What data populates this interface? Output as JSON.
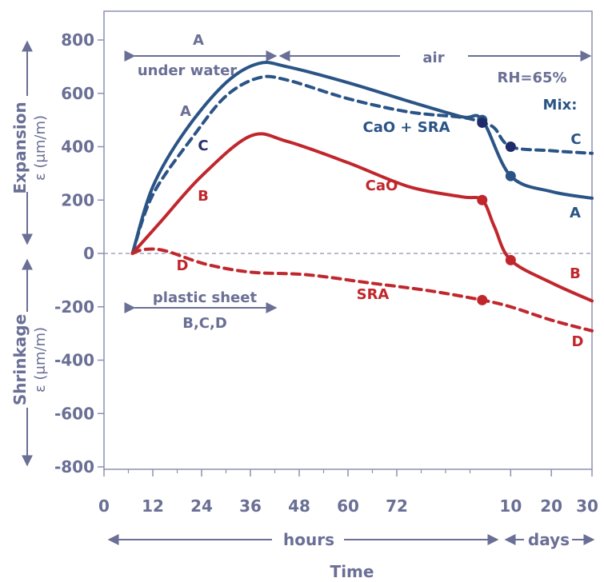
{
  "chart_data": {
    "type": "line",
    "title": "",
    "xlabel": "Time",
    "ylabel_top": "Expansion",
    "ylabel_top_unit": "ε (μm/m)",
    "ylabel_bottom": "Shrinkage",
    "ylabel_bottom_unit": "ε (μm/m)",
    "ylim": [
      -800,
      800
    ],
    "y_ticks": [
      "800",
      "600",
      "400",
      "200",
      "0",
      "-200",
      "-400",
      "-600",
      "-800"
    ],
    "x_ticks_hours": [
      "0",
      "12",
      "24",
      "36",
      "48",
      "60",
      "72"
    ],
    "x_ticks_days": [
      "10",
      "20",
      "30"
    ],
    "x_unit_hours": "hours",
    "x_unit_days": "days",
    "annotations": {
      "curing_water_letter": "A",
      "curing_water": "under water",
      "curing_air": "air",
      "curing_sheet": "plastic sheet",
      "curing_sheet_letters": "B,C,D",
      "rh": "RH=65%",
      "mix": "Mix:"
    },
    "series": [
      {
        "name": "CaO + SRA",
        "letter": "A",
        "color": "#2b5486",
        "dash": false,
        "points": [
          [
            7,
            0
          ],
          [
            12,
            250
          ],
          [
            20,
            460
          ],
          [
            30,
            640
          ],
          [
            38,
            712
          ],
          [
            45,
            700
          ],
          [
            60,
            640
          ],
          [
            75,
            570
          ],
          [
            88,
            512
          ],
          [
            93,
            500
          ],
          [
            100,
            290
          ],
          [
            110,
            232
          ],
          [
            120,
            207
          ]
        ],
        "markers": [
          [
            93,
            500
          ],
          [
            100,
            290
          ]
        ]
      },
      {
        "name": "CaO + SRA",
        "letter": "C",
        "color": "#2b5486",
        "dash": true,
        "points": [
          [
            7,
            0
          ],
          [
            12,
            220
          ],
          [
            22,
            440
          ],
          [
            30,
            590
          ],
          [
            38,
            658
          ],
          [
            45,
            650
          ],
          [
            60,
            580
          ],
          [
            75,
            530
          ],
          [
            88,
            510
          ],
          [
            93,
            490
          ],
          [
            96,
            470
          ],
          [
            100,
            400
          ],
          [
            110,
            385
          ],
          [
            120,
            375
          ]
        ],
        "markers": [
          [
            93,
            490
          ],
          [
            100,
            400
          ]
        ]
      },
      {
        "name": "CaO",
        "letter": "B",
        "color": "#c0272d",
        "dash": false,
        "points": [
          [
            7,
            0
          ],
          [
            14,
            120
          ],
          [
            24,
            290
          ],
          [
            36,
            440
          ],
          [
            45,
            420
          ],
          [
            60,
            340
          ],
          [
            75,
            250
          ],
          [
            88,
            212
          ],
          [
            93,
            200
          ],
          [
            96,
            100
          ],
          [
            100,
            -25
          ],
          [
            110,
            -110
          ],
          [
            120,
            -178
          ]
        ],
        "markers": [
          [
            93,
            200
          ],
          [
            100,
            -25
          ]
        ]
      },
      {
        "name": "SRA",
        "letter": "D",
        "color": "#c0272d",
        "dash": true,
        "points": [
          [
            7,
            0
          ],
          [
            10,
            15
          ],
          [
            15,
            10
          ],
          [
            25,
            -40
          ],
          [
            36,
            -70
          ],
          [
            50,
            -80
          ],
          [
            65,
            -110
          ],
          [
            80,
            -140
          ],
          [
            93,
            -175
          ],
          [
            100,
            -200
          ],
          [
            110,
            -250
          ],
          [
            120,
            -290
          ]
        ],
        "markers": [
          [
            93,
            -175
          ]
        ]
      }
    ]
  }
}
